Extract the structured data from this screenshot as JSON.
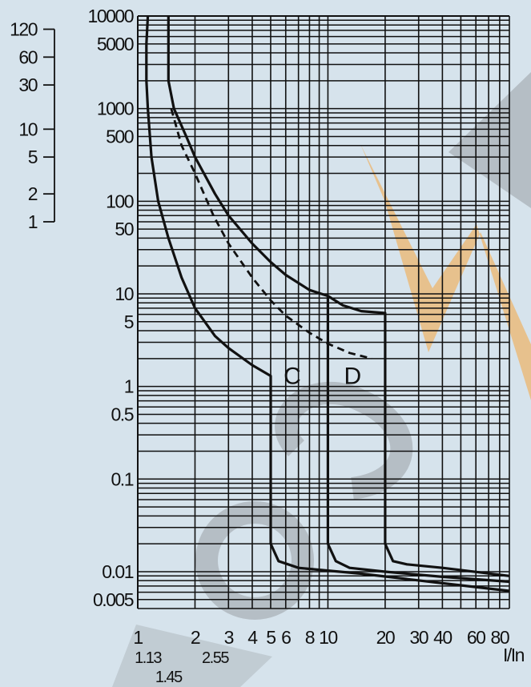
{
  "chart_data": {
    "type": "line",
    "title": "",
    "xlabel": "I/In",
    "ylabel": "",
    "x_scale": "log",
    "y_scale": "log",
    "xlim": [
      1,
      90
    ],
    "ylim": [
      0.004,
      10000
    ],
    "grid": true,
    "x_ticks": [
      {
        "value": 1,
        "label": "1"
      },
      {
        "value": 1.13,
        "label": "1.13"
      },
      {
        "value": 1.45,
        "label": "1.45"
      },
      {
        "value": 2,
        "label": "2"
      },
      {
        "value": 2.55,
        "label": "2.55"
      },
      {
        "value": 3,
        "label": "3"
      },
      {
        "value": 4,
        "label": "4"
      },
      {
        "value": 5,
        "label": "5"
      },
      {
        "value": 6,
        "label": "6"
      },
      {
        "value": 8,
        "label": "8"
      },
      {
        "value": 10,
        "label": "10"
      },
      {
        "value": 20,
        "label": "20"
      },
      {
        "value": 30,
        "label": "30"
      },
      {
        "value": 40,
        "label": "40"
      },
      {
        "value": 60,
        "label": "60"
      },
      {
        "value": 80,
        "label": "80"
      }
    ],
    "y_ticks": [
      {
        "value": 10000,
        "label": "10000"
      },
      {
        "value": 5000,
        "label": "5000"
      },
      {
        "value": 1000,
        "label": "1000"
      },
      {
        "value": 500,
        "label": "500"
      },
      {
        "value": 100,
        "label": "100"
      },
      {
        "value": 50,
        "label": "50"
      },
      {
        "value": 10,
        "label": "10"
      },
      {
        "value": 5,
        "label": "5"
      },
      {
        "value": 1,
        "label": "1"
      },
      {
        "value": 0.5,
        "label": "0.5"
      },
      {
        "value": 0.1,
        "label": "0.1"
      },
      {
        "value": 0.01,
        "label": "0.01"
      },
      {
        "value": 0.005,
        "label": "0.005"
      }
    ],
    "secondary_axis": {
      "ticks": [
        {
          "value": 7200,
          "label": "120"
        },
        {
          "value": 3600,
          "label": "60"
        },
        {
          "value": 1800,
          "label": "30"
        },
        {
          "value": 600,
          "label": "10"
        },
        {
          "value": 300,
          "label": "5"
        },
        {
          "value": 120,
          "label": "2"
        },
        {
          "value": 60,
          "label": "1"
        }
      ]
    },
    "series": [
      {
        "name": "",
        "style": "solid",
        "points": [
          [
            1.13,
            10000
          ],
          [
            1.11,
            5000
          ],
          [
            1.11,
            2000
          ],
          [
            1.13,
            1000
          ],
          [
            1.18,
            300
          ],
          [
            1.28,
            100
          ],
          [
            1.45,
            40
          ],
          [
            1.7,
            15
          ],
          [
            2,
            7
          ],
          [
            2.55,
            3.5
          ],
          [
            3,
            2.6
          ],
          [
            4,
            1.7
          ],
          [
            5,
            1.3
          ],
          [
            5,
            0.02
          ],
          [
            5.5,
            0.013
          ],
          [
            7,
            0.011
          ],
          [
            15,
            0.0095
          ],
          [
            40,
            0.0075
          ],
          [
            90,
            0.0062
          ]
        ]
      },
      {
        "name": "",
        "style": "solid",
        "points": [
          [
            1.45,
            10000
          ],
          [
            1.45,
            2000
          ],
          [
            1.55,
            1000
          ],
          [
            1.8,
            500
          ],
          [
            2,
            300
          ],
          [
            2.55,
            120
          ],
          [
            3,
            70
          ],
          [
            4,
            35
          ],
          [
            5,
            22
          ],
          [
            6,
            16
          ],
          [
            8,
            11
          ],
          [
            10,
            9.5
          ],
          [
            10,
            0.02
          ],
          [
            11,
            0.013
          ],
          [
            13,
            0.011
          ],
          [
            20,
            0.01
          ],
          [
            40,
            0.0088
          ],
          [
            90,
            0.0078
          ]
        ]
      },
      {
        "name": "",
        "style": "solid",
        "points": [
          [
            10,
            9.5
          ],
          [
            12,
            7.5
          ],
          [
            15,
            6.5
          ],
          [
            20,
            6.2
          ],
          [
            20,
            0.02
          ],
          [
            22,
            0.013
          ],
          [
            26,
            0.012
          ],
          [
            40,
            0.011
          ],
          [
            90,
            0.009
          ]
        ]
      },
      {
        "name": "",
        "style": "dashed",
        "points": [
          [
            1.5,
            1000
          ],
          [
            1.7,
            400
          ],
          [
            2,
            200
          ],
          [
            2.5,
            70
          ],
          [
            3,
            35
          ],
          [
            4,
            15
          ],
          [
            5,
            8.5
          ],
          [
            6,
            5.8
          ],
          [
            8,
            3.8
          ],
          [
            10,
            2.9
          ],
          [
            13,
            2.3
          ],
          [
            17,
            2
          ]
        ]
      }
    ],
    "annotations": [
      {
        "text": "C",
        "x": 6.5,
        "y": 1.3
      },
      {
        "text": "D",
        "x": 13.5,
        "y": 1.3
      }
    ]
  }
}
